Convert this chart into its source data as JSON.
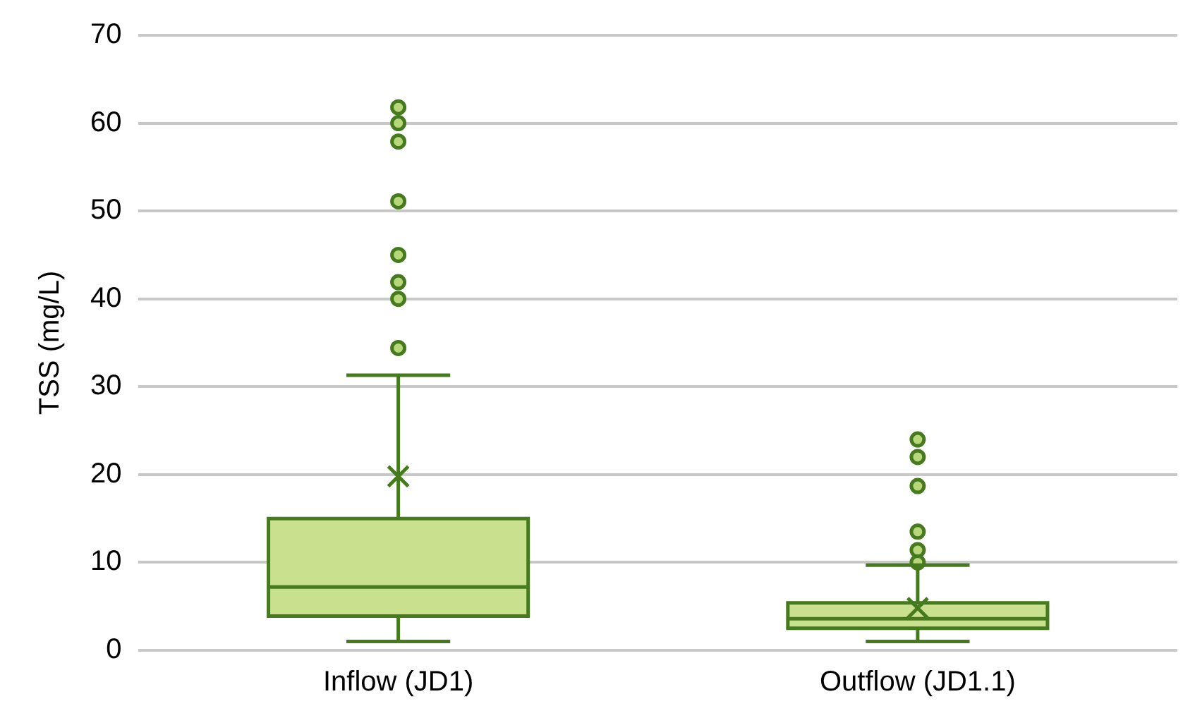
{
  "chart_data": {
    "type": "box",
    "ylabel": "TSS (mg/L)",
    "categories": [
      "Inflow (JD1)",
      "Outflow (JD1.1)"
    ],
    "color": "#c9e08f",
    "boxes": [
      {
        "low": 1.0,
        "q1": 3.9,
        "median": 7.2,
        "q3": 15.0,
        "high": 31.3,
        "mean": 19.8,
        "outliers": [
          61.8,
          60.0,
          57.9,
          51.1,
          45.0,
          41.9,
          40.0,
          34.4
        ]
      },
      {
        "low": 1.0,
        "q1": 2.5,
        "median": 3.6,
        "q3": 5.4,
        "high": 9.7,
        "mean": 4.8,
        "outliers": [
          24.0,
          22.0,
          18.7,
          13.5,
          11.4,
          10.0
        ]
      }
    ],
    "ylim": [
      0,
      70
    ],
    "yticks": [
      0,
      10,
      20,
      30,
      40,
      50,
      60,
      70
    ],
    "grid": "y",
    "legend": false,
    "marker": "circle"
  }
}
